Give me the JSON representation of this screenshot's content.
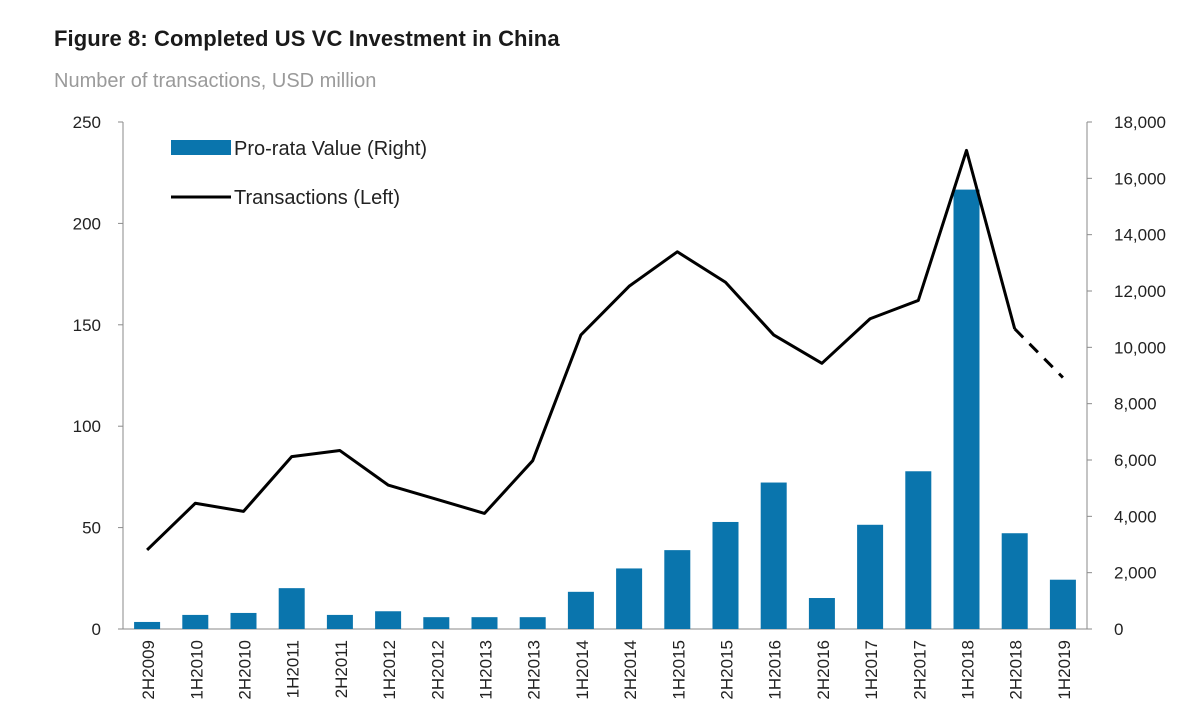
{
  "chart_data": {
    "type": "bar+line",
    "title": "Figure 8: Completed US VC Investment in China",
    "subtitle": "Number of transactions, USD million",
    "categories": [
      "2H2009",
      "1H2010",
      "2H2010",
      "1H2011",
      "2H2011",
      "1H2012",
      "2H2012",
      "1H2013",
      "2H2013",
      "1H2014",
      "2H2014",
      "1H2015",
      "2H2015",
      "1H2016",
      "2H2016",
      "1H2017",
      "2H2017",
      "1H2018",
      "2H2018",
      "1H2019"
    ],
    "series": [
      {
        "name": "Pro-rata Value (Right)",
        "type": "bar",
        "axis": "right",
        "color": "#0a75ad",
        "values": [
          250,
          500,
          570,
          1450,
          500,
          630,
          420,
          420,
          420,
          1320,
          2150,
          2800,
          3800,
          5200,
          1100,
          3700,
          5600,
          15600,
          3400,
          1750
        ]
      },
      {
        "name": "Transactions (Left)",
        "type": "line",
        "axis": "left",
        "color": "#000000",
        "values": [
          39,
          62,
          58,
          85,
          88,
          71,
          64,
          57,
          83,
          145,
          169,
          186,
          171,
          145,
          131,
          153,
          162,
          236,
          148,
          124
        ],
        "dashed_from_index": 18
      }
    ],
    "y_left": {
      "min": 0,
      "max": 250,
      "ticks": [
        0,
        50,
        100,
        150,
        200,
        250
      ],
      "tick_labels": [
        "0",
        "50",
        "100",
        "150",
        "200",
        "250"
      ]
    },
    "y_right": {
      "min": 0,
      "max": 18000,
      "ticks": [
        0,
        2000,
        4000,
        6000,
        8000,
        10000,
        12000,
        14000,
        16000,
        18000
      ],
      "tick_labels": [
        "0",
        "2,000",
        "4,000",
        "6,000",
        "8,000",
        "10,000",
        "12,000",
        "14,000",
        "16,000",
        "18,000"
      ]
    },
    "legend": {
      "position": "top-left"
    },
    "grid": false
  }
}
